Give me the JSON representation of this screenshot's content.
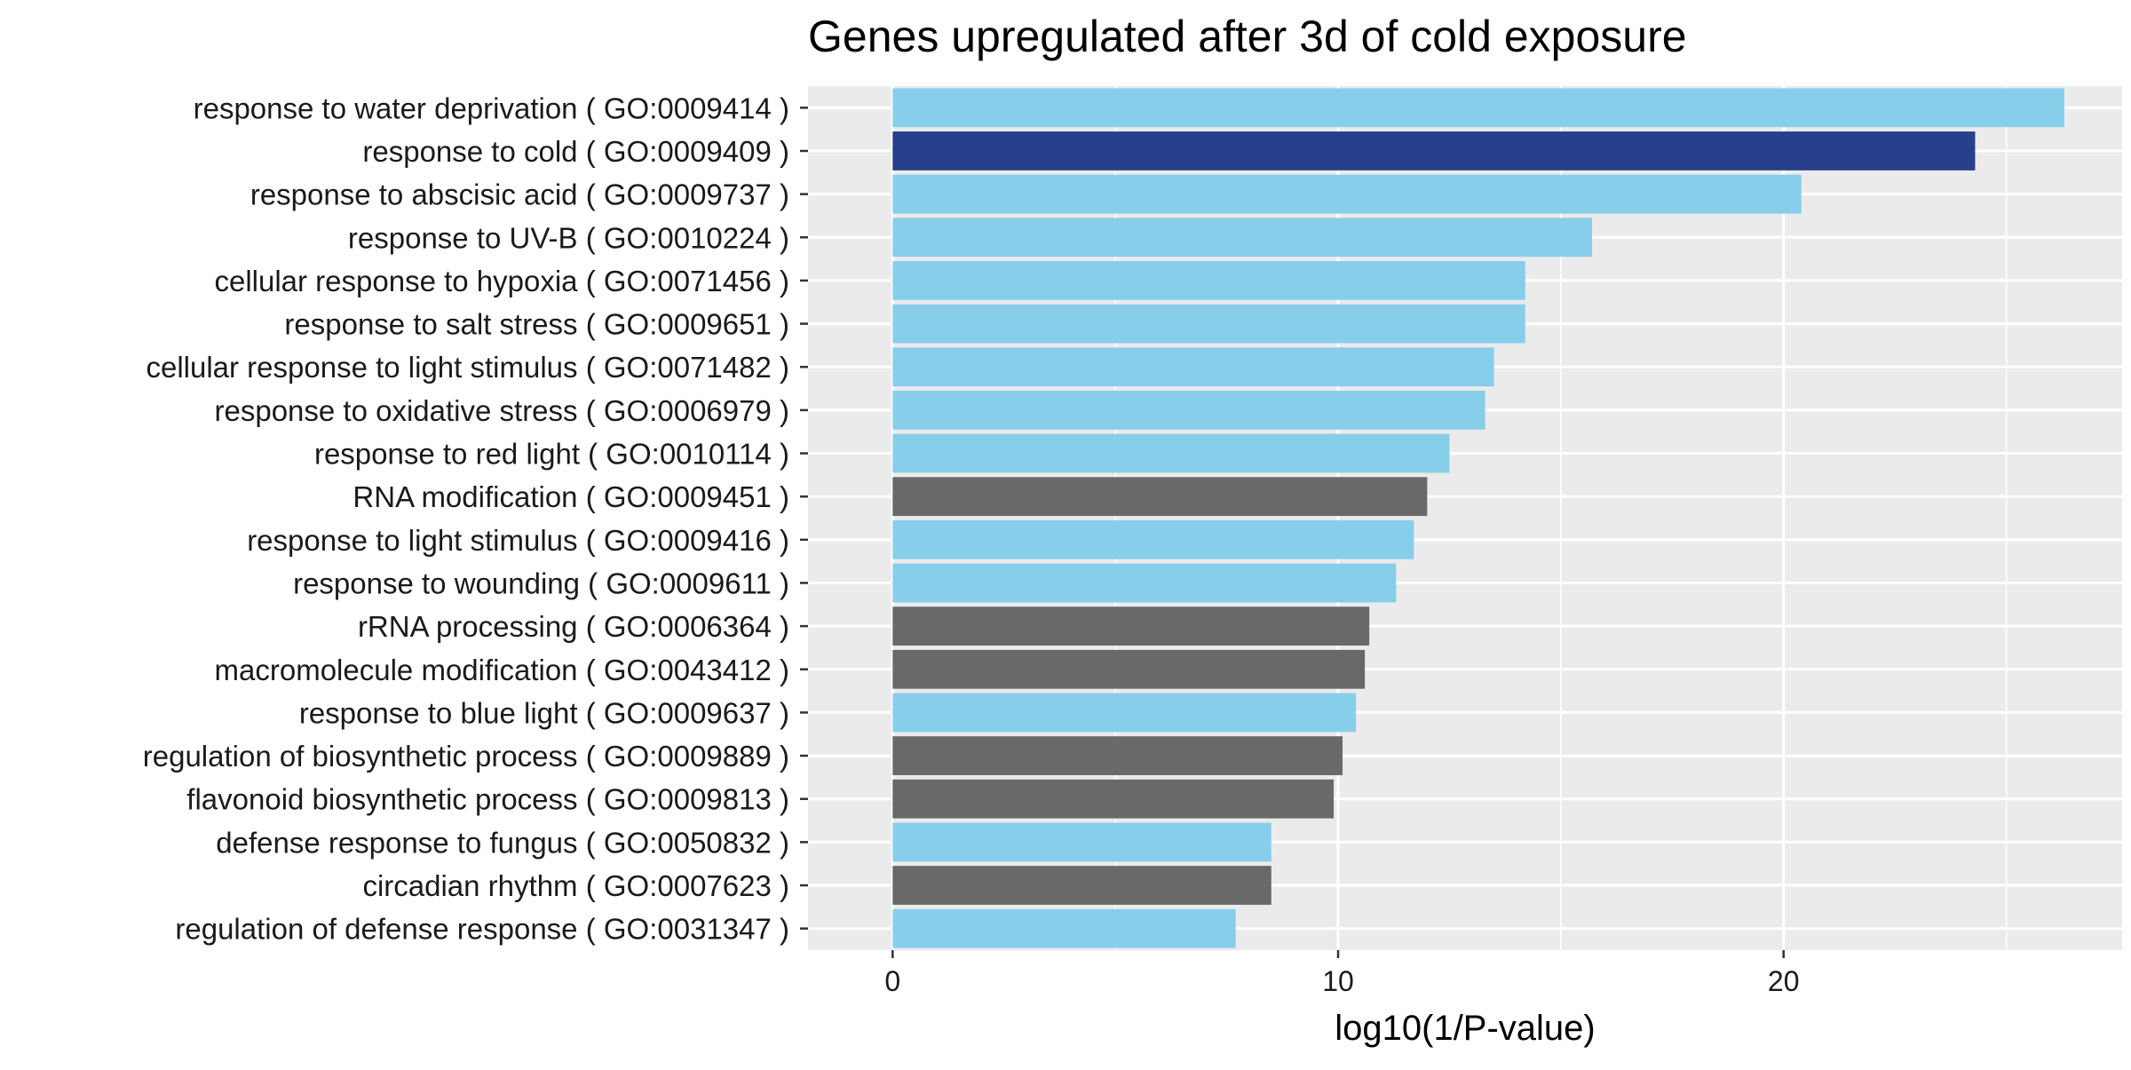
{
  "chart_data": {
    "type": "bar",
    "orientation": "horizontal",
    "title": "Genes upregulated after 3d of cold exposure",
    "xlabel": "log10(1/P-value)",
    "ylabel": "",
    "xlim": [
      -1.9,
      27.6
    ],
    "xticks": [
      0,
      10,
      20
    ],
    "x_tick_labels": [
      "0",
      "10",
      "20"
    ],
    "grid": true,
    "legend": "none",
    "categories": [
      "response to water deprivation ( GO:0009414 )",
      "response to cold ( GO:0009409 )",
      "response to abscisic acid ( GO:0009737 )",
      "response to UV-B ( GO:0010224 )",
      "cellular response to hypoxia ( GO:0071456 )",
      "response to salt stress ( GO:0009651 )",
      "cellular response to light stimulus ( GO:0071482 )",
      "response to oxidative stress ( GO:0006979 )",
      "response to red light ( GO:0010114 )",
      "RNA modification ( GO:0009451 )",
      "response to light stimulus ( GO:0009416 )",
      "response to wounding ( GO:0009611 )",
      "rRNA processing ( GO:0006364 )",
      "macromolecule modification ( GO:0043412 )",
      "response to blue light ( GO:0009637 )",
      "regulation of biosynthetic process ( GO:0009889 )",
      "flavonoid biosynthetic process ( GO:0009813 )",
      "defense response to fungus ( GO:0050832 )",
      "circadian rhythm ( GO:0007623 )",
      "regulation of defense response ( GO:0031347 )"
    ],
    "values": [
      26.3,
      24.3,
      20.4,
      15.7,
      14.2,
      14.2,
      13.5,
      13.3,
      12.5,
      12.0,
      11.7,
      11.3,
      10.7,
      10.6,
      10.4,
      10.1,
      9.9,
      8.5,
      8.5,
      7.7
    ],
    "bar_colors": [
      "#87ceeb",
      "#26408b",
      "#87ceeb",
      "#87ceeb",
      "#87ceeb",
      "#87ceeb",
      "#87ceeb",
      "#87ceeb",
      "#87ceeb",
      "#696969",
      "#87ceeb",
      "#87ceeb",
      "#696969",
      "#696969",
      "#87ceeb",
      "#696969",
      "#696969",
      "#87ceeb",
      "#696969",
      "#87ceeb"
    ],
    "colors": {
      "light_bar": "#87ceeb",
      "highlight_bar": "#26408b",
      "gray_bar": "#696969",
      "panel_background": "#ebebeb",
      "grid": "#ffffff",
      "text": "#000000",
      "tick_label": "#1a1a1a"
    }
  }
}
